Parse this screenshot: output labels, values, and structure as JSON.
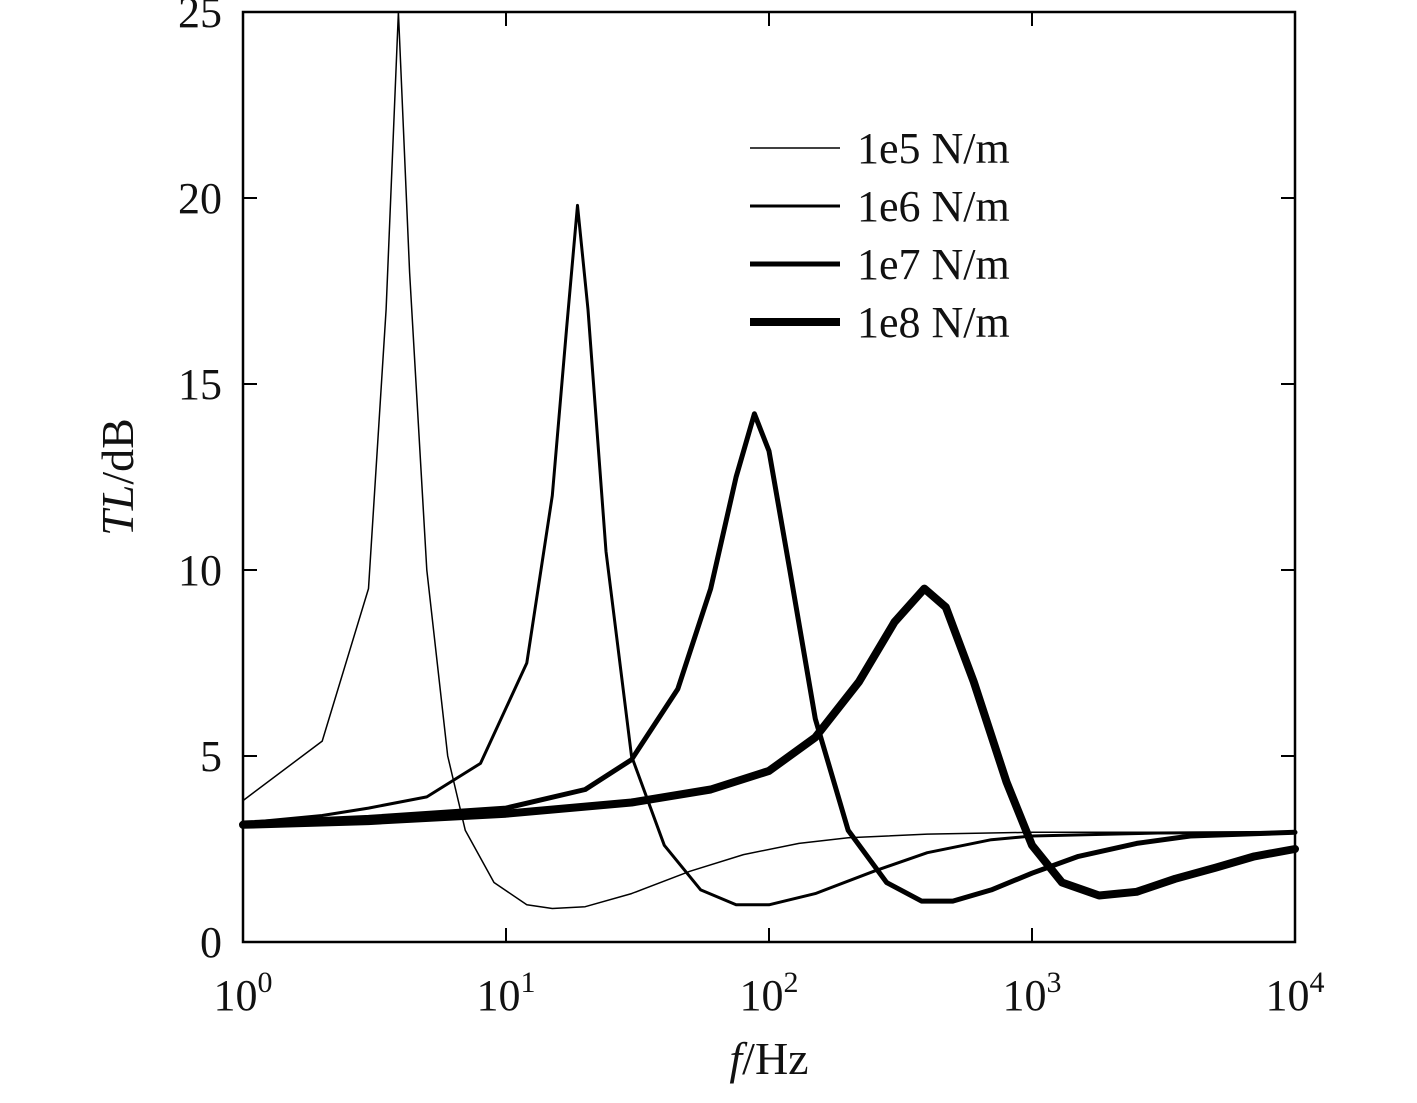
{
  "chart_data": {
    "type": "line",
    "title": "",
    "xlabel": {
      "italic": "f",
      "rest": "/Hz"
    },
    "ylabel": {
      "italic": "TL",
      "rest": "/dB"
    },
    "x_scale": "log",
    "xlim": [
      1,
      10000
    ],
    "ylim": [
      0,
      25
    ],
    "grid": false,
    "legend_position": "top-right",
    "x_ticks": [
      {
        "value": 1,
        "base": "10",
        "exp": "0"
      },
      {
        "value": 10,
        "base": "10",
        "exp": "1"
      },
      {
        "value": 100,
        "base": "10",
        "exp": "2"
      },
      {
        "value": 1000,
        "base": "10",
        "exp": "3"
      },
      {
        "value": 10000,
        "base": "10",
        "exp": "4"
      }
    ],
    "y_ticks": [
      {
        "value": 0,
        "label": "0"
      },
      {
        "value": 5,
        "label": "5"
      },
      {
        "value": 10,
        "label": "10"
      },
      {
        "value": 15,
        "label": "15"
      },
      {
        "value": 20,
        "label": "20"
      },
      {
        "value": 25,
        "label": "25"
      }
    ],
    "line_color": "#000000",
    "series": [
      {
        "name": "1e5 N/m",
        "weight": 1.5,
        "points": [
          [
            1,
            3.8
          ],
          [
            2,
            5.4
          ],
          [
            3,
            9.5
          ],
          [
            3.5,
            17.0
          ],
          [
            3.9,
            25.0
          ],
          [
            4.3,
            18.0
          ],
          [
            5,
            10.0
          ],
          [
            6,
            5.0
          ],
          [
            7,
            3.0
          ],
          [
            9,
            1.6
          ],
          [
            12,
            1.0
          ],
          [
            15,
            0.9
          ],
          [
            20,
            0.95
          ],
          [
            30,
            1.3
          ],
          [
            50,
            1.9
          ],
          [
            80,
            2.35
          ],
          [
            130,
            2.65
          ],
          [
            200,
            2.8
          ],
          [
            400,
            2.9
          ],
          [
            1000,
            2.95
          ],
          [
            10000,
            2.95
          ]
        ]
      },
      {
        "name": "1e6 N/m",
        "weight": 3,
        "points": [
          [
            1,
            3.2
          ],
          [
            2,
            3.4
          ],
          [
            3,
            3.6
          ],
          [
            5,
            3.9
          ],
          [
            8,
            4.8
          ],
          [
            12,
            7.5
          ],
          [
            15,
            12.0
          ],
          [
            17,
            16.5
          ],
          [
            18.7,
            19.8
          ],
          [
            20.5,
            17.0
          ],
          [
            24,
            10.5
          ],
          [
            30,
            5.0
          ],
          [
            40,
            2.6
          ],
          [
            55,
            1.4
          ],
          [
            75,
            1.0
          ],
          [
            100,
            1.0
          ],
          [
            150,
            1.3
          ],
          [
            250,
            1.9
          ],
          [
            400,
            2.4
          ],
          [
            700,
            2.75
          ],
          [
            1000,
            2.85
          ],
          [
            3000,
            2.93
          ],
          [
            10000,
            2.95
          ]
        ]
      },
      {
        "name": "1e7 N/m",
        "weight": 5,
        "points": [
          [
            1,
            3.2
          ],
          [
            3,
            3.35
          ],
          [
            10,
            3.6
          ],
          [
            20,
            4.1
          ],
          [
            30,
            4.9
          ],
          [
            45,
            6.8
          ],
          [
            60,
            9.5
          ],
          [
            75,
            12.5
          ],
          [
            88,
            14.2
          ],
          [
            100,
            13.2
          ],
          [
            120,
            10.0
          ],
          [
            150,
            6.0
          ],
          [
            200,
            3.0
          ],
          [
            280,
            1.6
          ],
          [
            380,
            1.1
          ],
          [
            500,
            1.1
          ],
          [
            700,
            1.4
          ],
          [
            1000,
            1.85
          ],
          [
            1500,
            2.3
          ],
          [
            2500,
            2.65
          ],
          [
            4000,
            2.85
          ],
          [
            10000,
            2.95
          ]
        ]
      },
      {
        "name": "1e8 N/m",
        "weight": 8,
        "points": [
          [
            1,
            3.15
          ],
          [
            3,
            3.25
          ],
          [
            10,
            3.45
          ],
          [
            30,
            3.75
          ],
          [
            60,
            4.1
          ],
          [
            100,
            4.6
          ],
          [
            150,
            5.5
          ],
          [
            220,
            7.0
          ],
          [
            300,
            8.6
          ],
          [
            390,
            9.5
          ],
          [
            470,
            9.0
          ],
          [
            600,
            7.0
          ],
          [
            800,
            4.3
          ],
          [
            1000,
            2.6
          ],
          [
            1300,
            1.6
          ],
          [
            1800,
            1.25
          ],
          [
            2500,
            1.35
          ],
          [
            3500,
            1.7
          ],
          [
            5000,
            2.0
          ],
          [
            7000,
            2.3
          ],
          [
            10000,
            2.5
          ]
        ]
      }
    ]
  }
}
